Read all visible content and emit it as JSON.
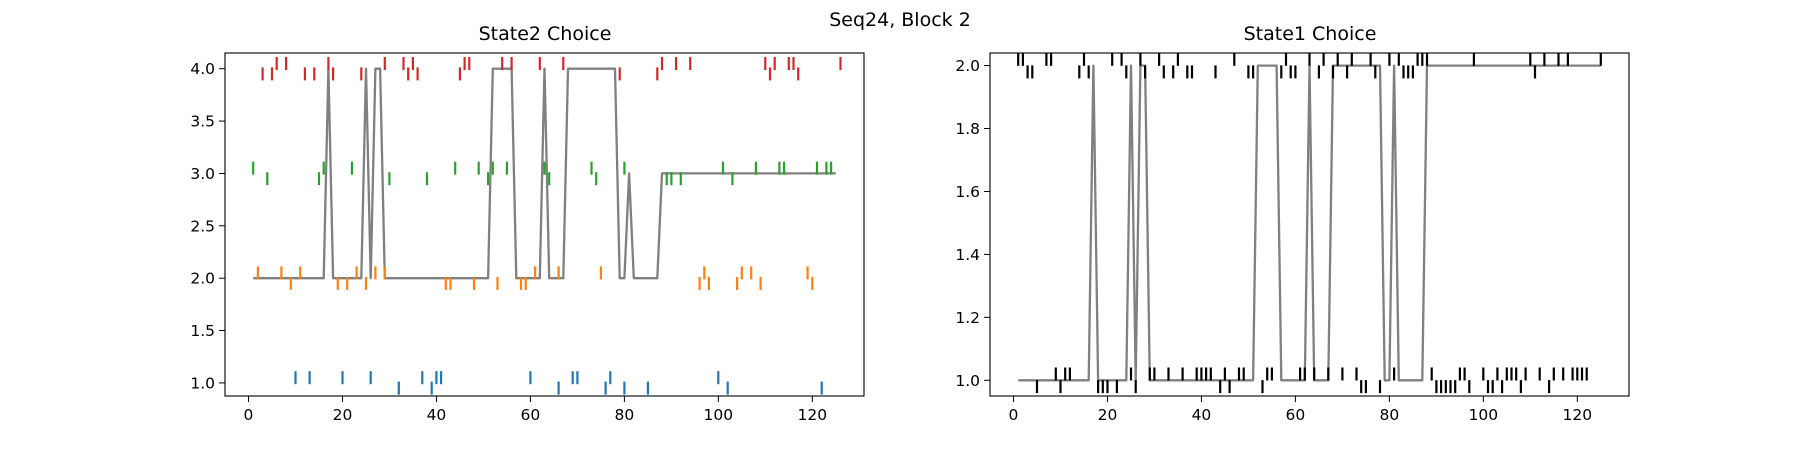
{
  "figure": {
    "suptitle": "Seq24, Block 2"
  },
  "colors": {
    "s0": "#1f77b4",
    "s1": "#ff7f0e",
    "s2": "#2ca02c",
    "s3": "#d62728",
    "choice": "#000000",
    "line": "#808080"
  },
  "chart_data": [
    {
      "type": "scatter",
      "title": "State2 Choice",
      "xlabel": "",
      "ylabel": "",
      "xlim": [
        -5,
        131
      ],
      "ylim": [
        0.875,
        4.15
      ],
      "xticks": [
        0,
        20,
        40,
        60,
        80,
        100,
        120
      ],
      "yticks": [
        1.0,
        1.5,
        2.0,
        2.5,
        3.0,
        3.5,
        4.0
      ],
      "ytick_labels": [
        "1.0",
        "1.5",
        "2.0",
        "2.5",
        "3.0",
        "3.5",
        "4.0"
      ],
      "grid": false,
      "series": [
        {
          "key": "s0",
          "color": "#1f77b4",
          "x": [
            10,
            13,
            20,
            26,
            32,
            37,
            39,
            40,
            41,
            60,
            66,
            69,
            70,
            76,
            77,
            80,
            85,
            100,
            102,
            122
          ],
          "y": [
            1.05,
            1.05,
            1.05,
            1.05,
            0.95,
            1.05,
            0.95,
            1.05,
            1.05,
            1.05,
            0.95,
            1.05,
            1.05,
            0.95,
            1.05,
            0.95,
            0.95,
            1.05,
            0.95,
            0.95
          ]
        },
        {
          "key": "s1",
          "color": "#ff7f0e",
          "x": [
            2,
            7,
            9,
            11,
            19,
            21,
            23,
            25,
            27,
            29,
            42,
            43,
            48,
            53,
            58,
            59,
            61,
            66,
            75,
            96,
            97,
            98,
            104,
            105,
            107,
            109,
            119,
            120
          ],
          "y": [
            2.05,
            2.05,
            1.95,
            2.05,
            1.95,
            1.95,
            2.05,
            1.95,
            2.05,
            2.05,
            1.95,
            1.95,
            1.95,
            1.95,
            1.95,
            1.95,
            2.05,
            2.05,
            2.05,
            1.95,
            2.05,
            1.95,
            1.95,
            2.05,
            2.05,
            1.95,
            2.05,
            1.95
          ]
        },
        {
          "key": "s2",
          "color": "#2ca02c",
          "x": [
            1,
            4,
            15,
            16,
            22,
            30,
            38,
            44,
            49,
            51,
            52,
            55,
            63,
            64,
            73,
            74,
            80,
            89,
            90,
            92,
            101,
            103,
            108,
            113,
            114,
            121,
            123,
            124
          ],
          "y": [
            3.05,
            2.95,
            2.95,
            3.05,
            3.05,
            2.95,
            2.95,
            3.05,
            3.05,
            2.95,
            3.05,
            3.05,
            3.05,
            2.95,
            3.05,
            2.95,
            3.05,
            2.95,
            2.95,
            2.95,
            3.05,
            2.95,
            3.05,
            3.05,
            3.05,
            3.05,
            3.05,
            3.05
          ]
        },
        {
          "key": "s3",
          "color": "#d62728",
          "x": [
            3,
            5,
            6,
            8,
            12,
            14,
            17,
            18,
            24,
            29,
            33,
            34,
            35,
            36,
            45,
            46,
            47,
            54,
            56,
            62,
            67,
            79,
            87,
            88,
            91,
            94,
            110,
            111,
            112,
            115,
            116,
            117,
            126
          ],
          "y": [
            3.95,
            3.95,
            4.05,
            4.05,
            3.95,
            3.95,
            4.05,
            3.95,
            3.95,
            4.05,
            4.05,
            3.95,
            4.05,
            3.95,
            3.95,
            4.05,
            4.05,
            4.05,
            4.05,
            4.05,
            4.05,
            3.95,
            3.95,
            4.05,
            4.05,
            4.05,
            4.05,
            3.95,
            4.05,
            4.05,
            4.05,
            3.95,
            4.05
          ]
        }
      ],
      "line": {
        "color": "#808080",
        "points": [
          [
            1,
            2
          ],
          [
            16,
            2
          ],
          [
            17,
            4
          ],
          [
            18,
            2
          ],
          [
            24,
            2
          ],
          [
            25,
            4
          ],
          [
            26,
            2
          ],
          [
            27,
            4
          ],
          [
            28,
            4
          ],
          [
            29,
            2
          ],
          [
            51,
            2
          ],
          [
            52,
            4
          ],
          [
            56,
            4
          ],
          [
            57,
            2
          ],
          [
            62,
            2
          ],
          [
            63,
            4
          ],
          [
            64,
            2
          ],
          [
            67,
            2
          ],
          [
            68,
            4
          ],
          [
            78,
            4
          ],
          [
            79,
            2
          ],
          [
            80,
            2
          ],
          [
            81,
            3
          ],
          [
            82,
            2
          ],
          [
            87,
            2
          ],
          [
            88,
            3
          ],
          [
            125,
            3
          ]
        ]
      }
    },
    {
      "type": "scatter",
      "title": "State1 Choice",
      "xlabel": "",
      "ylabel": "",
      "xlim": [
        -5,
        131
      ],
      "ylim": [
        0.95,
        2.04
      ],
      "xticks": [
        0,
        20,
        40,
        60,
        80,
        100,
        120
      ],
      "yticks": [
        1.0,
        1.2,
        1.4,
        1.6,
        1.8,
        2.0
      ],
      "ytick_labels": [
        "1.0",
        "1.2",
        "1.4",
        "1.6",
        "1.8",
        "2.0"
      ],
      "grid": false,
      "series": [
        {
          "key": "choice",
          "color": "#000000",
          "x": [
            1,
            2,
            3,
            4,
            5,
            7,
            8,
            9,
            10,
            11,
            12,
            14,
            15,
            16,
            18,
            19,
            20,
            21,
            22,
            23,
            24,
            25,
            26,
            27,
            28,
            29,
            30,
            31,
            32,
            33,
            34,
            35,
            36,
            37,
            38,
            39,
            40,
            41,
            42,
            43,
            44,
            45,
            46,
            47,
            48,
            49,
            50,
            51,
            53,
            54,
            55,
            57,
            58,
            59,
            60,
            61,
            62,
            63,
            64,
            65,
            66,
            67,
            68,
            69,
            70,
            71,
            72,
            73,
            74,
            75,
            76,
            77,
            78,
            80,
            81,
            82,
            83,
            84,
            85,
            86,
            87,
            88,
            89,
            90,
            91,
            92,
            93,
            94,
            95,
            96,
            97,
            98,
            100,
            101,
            102,
            103,
            104,
            105,
            106,
            107,
            108,
            109,
            110,
            111,
            112,
            113,
            114,
            115,
            116,
            117,
            118,
            119,
            120,
            121,
            122,
            125
          ],
          "y": [
            2.02,
            2.02,
            1.98,
            1.98,
            0.98,
            2.02,
            2.02,
            1.02,
            0.98,
            1.02,
            1.02,
            1.98,
            2.02,
            1.98,
            0.98,
            0.98,
            0.98,
            2.02,
            0.98,
            2.02,
            1.98,
            1.02,
            0.98,
            2.02,
            1.98,
            1.02,
            1.02,
            2.02,
            1.98,
            1.02,
            1.98,
            2.02,
            1.02,
            1.98,
            1.98,
            1.02,
            1.02,
            1.02,
            1.02,
            1.98,
            0.98,
            1.02,
            0.98,
            2.02,
            1.02,
            1.02,
            1.98,
            1.98,
            0.98,
            1.02,
            1.02,
            1.98,
            2.02,
            1.98,
            1.98,
            1.02,
            1.02,
            2.02,
            1.02,
            1.98,
            2.02,
            1.02,
            1.98,
            2.02,
            1.02,
            1.98,
            2.02,
            1.02,
            0.98,
            0.98,
            2.02,
            1.98,
            0.98,
            2.02,
            1.02,
            2.02,
            1.98,
            1.98,
            1.98,
            2.02,
            2.02,
            2.02,
            1.02,
            0.98,
            0.98,
            0.98,
            0.98,
            0.98,
            1.02,
            1.02,
            0.98,
            2.02,
            1.02,
            0.98,
            0.98,
            1.02,
            0.98,
            1.02,
            1.02,
            1.02,
            0.98,
            1.02,
            2.02,
            1.98,
            1.02,
            2.02,
            0.98,
            1.02,
            2.02,
            1.02,
            2.02,
            1.02,
            1.02,
            1.02,
            1.02,
            2.02
          ]
        }
      ],
      "line": {
        "color": "#808080",
        "points": [
          [
            1,
            1
          ],
          [
            16,
            1
          ],
          [
            17,
            2
          ],
          [
            18,
            1
          ],
          [
            24,
            1
          ],
          [
            25,
            2
          ],
          [
            26,
            1
          ],
          [
            27,
            2
          ],
          [
            28,
            2
          ],
          [
            29,
            1
          ],
          [
            51,
            1
          ],
          [
            52,
            2
          ],
          [
            56,
            2
          ],
          [
            57,
            1
          ],
          [
            62,
            1
          ],
          [
            63,
            2
          ],
          [
            64,
            1
          ],
          [
            67,
            1
          ],
          [
            68,
            2
          ],
          [
            78,
            2
          ],
          [
            79,
            1
          ],
          [
            80,
            1
          ],
          [
            81,
            2
          ],
          [
            82,
            1
          ],
          [
            87,
            1
          ],
          [
            88,
            2
          ],
          [
            125,
            2
          ]
        ]
      }
    }
  ]
}
